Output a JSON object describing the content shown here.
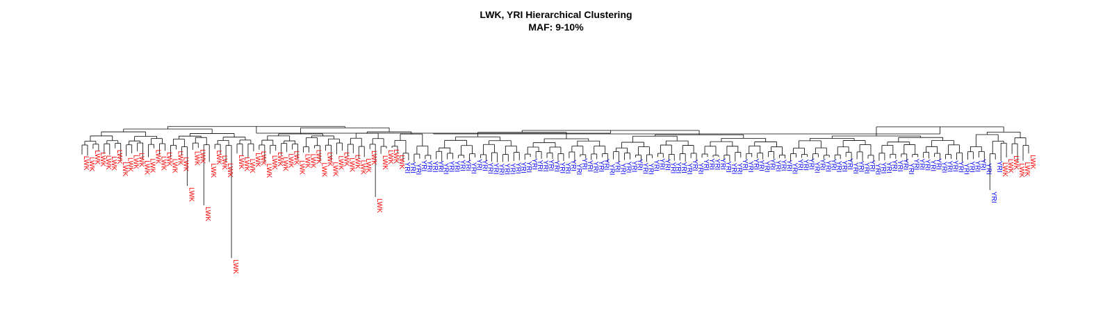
{
  "figure": {
    "title_line1": "LWK, YRI Hierarchical Clustering",
    "title_line2": "MAF: 9-10%"
  },
  "legend": {
    "LWK": {
      "label": "LWK",
      "color": "#ff0000"
    },
    "YRI": {
      "label": "YRI",
      "color": "#0000ff"
    }
  },
  "dendrogram": {
    "type": "dendrogram",
    "leaf_order": [
      {
        "group": "LWK",
        "count": 58
      },
      {
        "group": "YRI",
        "count": 108
      },
      {
        "group": "LWK",
        "count": 6
      }
    ],
    "outlier_leaves": [
      "LWK",
      "LWK",
      "LWK",
      "LWK"
    ]
  }
}
